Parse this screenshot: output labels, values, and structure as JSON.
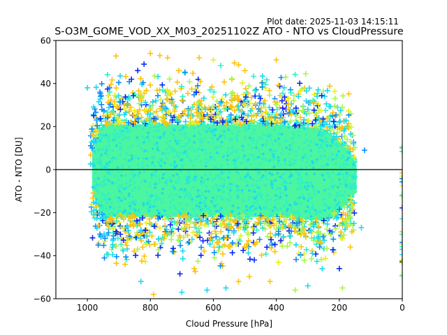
{
  "plot_date": "Plot date: 2025-11-03 14:15:11",
  "chart_data": {
    "type": "scatter",
    "title": "S-O3M_GOME_VOD_XX_M03_20251102Z ATO - NTO vs CloudPressure",
    "xlabel": "Cloud Pressure [hPa]",
    "ylabel": "ATO - NTO [DU]",
    "xlim": [
      1100,
      0
    ],
    "ylim": [
      -60,
      60
    ],
    "x_inverted": true,
    "xticks": [
      1000,
      800,
      600,
      400,
      200,
      0
    ],
    "xtick_labels": [
      "1000",
      "800",
      "600",
      "400",
      "200",
      "0"
    ],
    "yticks": [
      60,
      40,
      20,
      0,
      -20,
      -40,
      -60
    ],
    "ytick_labels": [
      "60",
      "40",
      "20",
      "0",
      "−20",
      "−40",
      "−60"
    ],
    "reference_line": {
      "y": 0,
      "color": "#000000"
    },
    "marker": "+",
    "grid": false,
    "legend": "none",
    "colors": {
      "dense_core": "#4cf5a0",
      "core_edge": "#2ef0c8",
      "cyan": "#1ad8f0",
      "azure": "#0a8cf8",
      "blue": "#0a28f0",
      "lime": "#a8f54c",
      "yellow": "#e8f01a",
      "orange": "#ffc20a"
    },
    "point_cloud": {
      "description": "Dense cloud of ATO-NTO differences; core spans roughly 950-180 hPa and -20..+20 DU, scattered outliers to about +/-55 DU",
      "core_x_range": [
        980,
        150
      ],
      "core_y_range": [
        -22,
        22
      ],
      "outlier_y_range": [
        -58,
        55
      ],
      "edge_column_x": 0,
      "edge_column_y_range": [
        -50,
        14
      ]
    },
    "sample_points": [
      {
        "x": 800,
        "y": 54,
        "c": "orange"
      },
      {
        "x": 770,
        "y": 53,
        "c": "orange"
      },
      {
        "x": 745,
        "y": 52,
        "c": "orange"
      },
      {
        "x": 645,
        "y": 52,
        "c": "orange"
      },
      {
        "x": 400,
        "y": 51,
        "c": "orange"
      },
      {
        "x": 600,
        "y": 51,
        "c": "yellow"
      },
      {
        "x": 820,
        "y": 49,
        "c": "blue"
      },
      {
        "x": 840,
        "y": 46,
        "c": "blue"
      },
      {
        "x": 710,
        "y": 46,
        "c": "orange"
      },
      {
        "x": 500,
        "y": 46,
        "c": "orange"
      },
      {
        "x": 370,
        "y": 43,
        "c": "lime"
      },
      {
        "x": 860,
        "y": 42,
        "c": "blue"
      },
      {
        "x": 690,
        "y": 45,
        "c": "azure"
      },
      {
        "x": 1000,
        "y": 38,
        "c": "cyan"
      },
      {
        "x": 960,
        "y": 36,
        "c": "azure"
      },
      {
        "x": 930,
        "y": 38,
        "c": "azure"
      },
      {
        "x": 330,
        "y": 34,
        "c": "cyan"
      },
      {
        "x": 300,
        "y": 28,
        "c": "cyan"
      },
      {
        "x": 265,
        "y": 24,
        "c": "cyan"
      },
      {
        "x": 230,
        "y": 20,
        "c": "cyan"
      },
      {
        "x": 200,
        "y": 22,
        "c": "cyan"
      },
      {
        "x": 185,
        "y": 18,
        "c": "cyan"
      },
      {
        "x": 175,
        "y": 14,
        "c": "lime"
      },
      {
        "x": 155,
        "y": 12,
        "c": "cyan"
      },
      {
        "x": 120,
        "y": 9,
        "c": "azure"
      },
      {
        "x": 130,
        "y": -27,
        "c": "cyan"
      },
      {
        "x": 165,
        "y": -36,
        "c": "orange"
      },
      {
        "x": 200,
        "y": -46,
        "c": "blue"
      },
      {
        "x": 190,
        "y": -55,
        "c": "lime"
      },
      {
        "x": 300,
        "y": -54,
        "c": "cyan"
      },
      {
        "x": 340,
        "y": -56,
        "c": "lime"
      },
      {
        "x": 420,
        "y": -52,
        "c": "orange"
      },
      {
        "x": 470,
        "y": -42,
        "c": "blue"
      },
      {
        "x": 520,
        "y": -52,
        "c": "orange"
      },
      {
        "x": 560,
        "y": -55,
        "c": "cyan"
      },
      {
        "x": 620,
        "y": -56,
        "c": "cyan"
      },
      {
        "x": 700,
        "y": -57,
        "c": "cyan"
      },
      {
        "x": 790,
        "y": -58,
        "c": "orange"
      },
      {
        "x": 830,
        "y": -52,
        "c": "cyan"
      },
      {
        "x": 880,
        "y": -44,
        "c": "orange"
      },
      {
        "x": 920,
        "y": -36,
        "c": "cyan"
      },
      {
        "x": 960,
        "y": -30,
        "c": "azure"
      }
    ]
  }
}
